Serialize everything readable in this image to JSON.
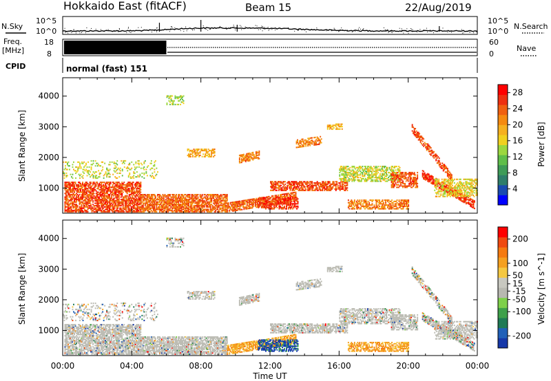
{
  "header": {
    "station": "Hokkaido East (fitACF)",
    "beam": "Beam 15",
    "date": "22/Aug/2019"
  },
  "summary_panel": {
    "noise_sky_label": "N.Sky",
    "noise_search_label": "N.Search",
    "noise_tick_top": "10^5",
    "noise_tick_bottom": "10^0",
    "freq_label_line1": "Freq.",
    "freq_label_line2": "[MHz]",
    "freq_ticks": [
      "18",
      "8"
    ],
    "nave_label": "Nave",
    "nave_ticks": [
      "60",
      "0"
    ],
    "cpid_label": "CPID",
    "cpid_text": "normal (fast) 151",
    "freq_block_end_hour": 6
  },
  "colors": {
    "power_scale": [
      "#0000ff",
      "#1a4ab0",
      "#2e7d6a",
      "#3e9b57",
      "#5fbe4a",
      "#9bd73f",
      "#f0d020",
      "#f5b020",
      "#f58a10",
      "#f06010",
      "#ee3010",
      "#ff0000"
    ],
    "velocity_scale": [
      "#1638a8",
      "#2060b8",
      "#1f7a55",
      "#3ea04a",
      "#7ed04a",
      "#b8b8b0",
      "#c8c8c0",
      "#f5c842",
      "#f5a020",
      "#f57a10",
      "#f04a10",
      "#ff0000"
    ],
    "ground_scatter": "#bdbdb5"
  },
  "chart_data": [
    {
      "type": "heatmap",
      "name": "Power",
      "xlabel": "Time UT",
      "ylabel": "Slant Range [km]",
      "x_ticks": [
        "00:00",
        "04:00",
        "08:00",
        "12:00",
        "16:00",
        "20:00",
        "00:00"
      ],
      "x_range_hours": [
        0,
        24
      ],
      "y_ticks": [
        1000,
        2000,
        3000,
        4000
      ],
      "y_range_km": [
        180,
        4600
      ],
      "colorbar_label": "Power [dB]",
      "colorbar_ticks": [
        4,
        8,
        12,
        16,
        20,
        24,
        28
      ],
      "colorbar_range": [
        0,
        30
      ]
    },
    {
      "type": "heatmap",
      "name": "Velocity",
      "xlabel": "Time UT",
      "ylabel": "Slant Range [km]",
      "x_ticks": [
        "00:00",
        "04:00",
        "08:00",
        "12:00",
        "16:00",
        "20:00",
        "00:00"
      ],
      "x_range_hours": [
        0,
        24
      ],
      "y_ticks": [
        1000,
        2000,
        3000,
        4000
      ],
      "y_range_km": [
        180,
        4600
      ],
      "colorbar_label": "Velocity [m s^-1]",
      "colorbar_ticks": [
        200,
        100,
        50,
        15,
        -15,
        -50,
        -100,
        -200
      ],
      "colorbar_range": [
        -250,
        250
      ]
    }
  ],
  "time_axis_label": "Time UT"
}
